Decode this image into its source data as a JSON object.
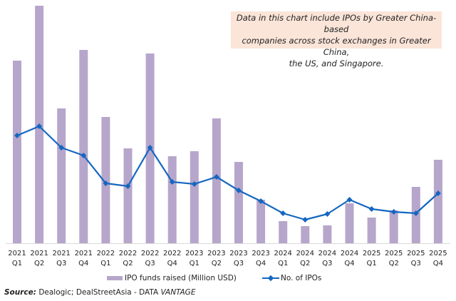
{
  "chart_data": {
    "type": "bar+line",
    "title": "",
    "xlabel": "",
    "ylabel": "",
    "y_axis_visible": false,
    "gridlines": false,
    "categories": [
      [
        "2021",
        "Q1"
      ],
      [
        "2021",
        "Q2"
      ],
      [
        "2021",
        "Q3"
      ],
      [
        "2021",
        "Q4"
      ],
      [
        "2022",
        "Q1"
      ],
      [
        "2022",
        "Q2"
      ],
      [
        "2022",
        "Q3"
      ],
      [
        "2022",
        "Q4"
      ],
      [
        "2023",
        "Q1"
      ],
      [
        "2023",
        "Q2"
      ],
      [
        "2023",
        "Q3"
      ],
      [
        "2023",
        "Q4"
      ],
      [
        "2024",
        "Q1"
      ],
      [
        "2024",
        "Q2"
      ],
      [
        "2024",
        "Q3"
      ],
      [
        "2024",
        "Q4"
      ],
      [
        "2025",
        "Q1"
      ],
      [
        "2025",
        "Q2"
      ],
      [
        "2025",
        "Q3"
      ],
      [
        "2025",
        "Q4"
      ]
    ],
    "series": [
      {
        "name": "IPO funds raised (Million USD)",
        "type": "bar",
        "color": "#b7a6cb",
        "values_relative": [
          256,
          333,
          189,
          271,
          177,
          133,
          266,
          122,
          129,
          175,
          114,
          61,
          31,
          24,
          25,
          56,
          36,
          46,
          79,
          117
        ]
      },
      {
        "name": "No. of IPOs",
        "type": "line",
        "color": "#1567c0",
        "values_relative": [
          151,
          164,
          134,
          123,
          84,
          80,
          134,
          86,
          83,
          93,
          74,
          59,
          42,
          33,
          41,
          61,
          48,
          44,
          42,
          70
        ]
      }
    ],
    "ylim_relative": [
      0,
      340
    ],
    "legend_position": "bottom",
    "annotation": "Data in this chart include IPOs by Greater China-based companies across stock exchanges in Greater China, the US, and Singapore."
  },
  "note": {
    "line1": "Data in this chart include IPOs by Greater China-based",
    "line2": "companies across stock exchanges in Greater China,",
    "line3": "the US, and Singapore."
  },
  "legend": {
    "bar_label": "IPO funds raised (Million USD)",
    "line_label": "No. of IPOs"
  },
  "source": {
    "prefix": "Source:",
    "text": " Dealogic; DealStreetAsia -  DATA ",
    "brand": "VANTAGE"
  }
}
